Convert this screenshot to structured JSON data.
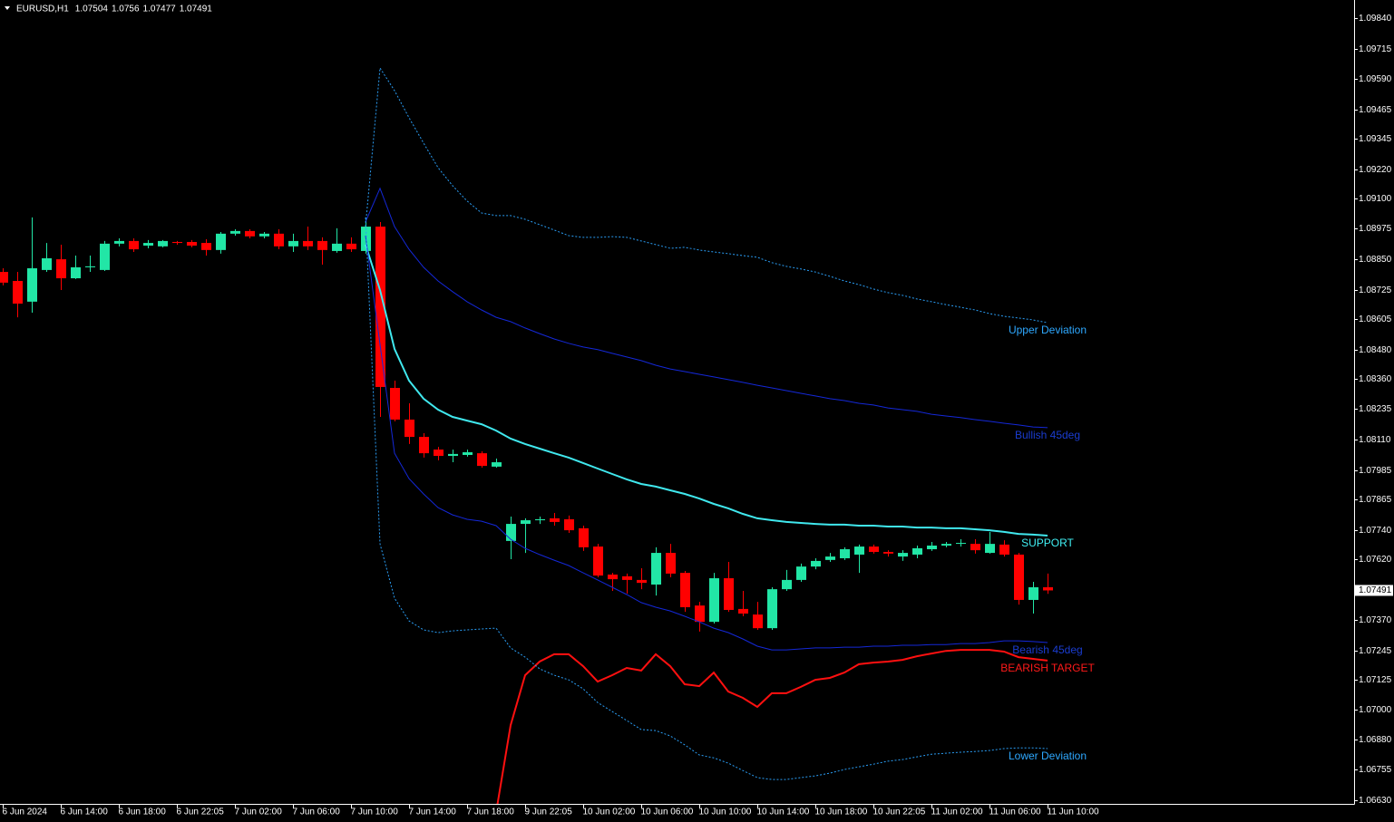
{
  "chart_data": {
    "type": "candlestick",
    "title": "EURUSD,H1",
    "up_color": "#22e6a6",
    "down_color": "#ff0000",
    "categories": [
      "6 Jun 2024",
      null,
      null,
      null,
      "6 Jun 14:00",
      null,
      null,
      null,
      "6 Jun 18:00",
      null,
      null,
      null,
      "6 Jun 22:05",
      null,
      null,
      null,
      "7 Jun 02:00",
      null,
      null,
      null,
      "7 Jun 06:00",
      null,
      null,
      null,
      "7 Jun 10:00",
      null,
      null,
      null,
      "7 Jun 14:00",
      null,
      null,
      null,
      "7 Jun 18:00",
      null,
      null,
      null,
      "9 Jun 22:05",
      null,
      null,
      null,
      "10 Jun 02:00",
      null,
      null,
      null,
      "10 Jun 06:00",
      null,
      null,
      null,
      "10 Jun 10:00",
      null,
      null,
      null,
      "10 Jun 14:00",
      null,
      null,
      null,
      "10 Jun 18:00",
      null,
      null,
      null,
      "10 Jun 22:05",
      null,
      null,
      null,
      "11 Jun 02:00",
      null,
      null,
      null,
      "11 Jun 06:00",
      null,
      null,
      null,
      "11 Jun 10:00"
    ],
    "open": [
      1.08798,
      1.08761,
      1.08676,
      1.08806,
      1.0885,
      1.08772,
      1.08817,
      1.08806,
      1.08914,
      1.08925,
      1.08906,
      1.08903,
      1.08921,
      1.08921,
      1.08917,
      1.08888,
      1.08955,
      1.08966,
      1.08944,
      1.08955,
      1.08903,
      1.08925,
      1.08925,
      1.08884,
      1.08914,
      1.08884,
      1.08984,
      1.08322,
      1.08192,
      1.08121,
      1.08069,
      1.08043,
      1.08047,
      1.08054,
      1.07999,
      1.07694,
      1.07764,
      1.07779,
      1.07787,
      1.07783,
      1.07746,
      1.07671,
      1.07556,
      1.07549,
      1.07534,
      1.07515,
      1.07645,
      1.07563,
      1.07429,
      1.07362,
      1.07541,
      1.07415,
      1.07392,
      1.07336,
      1.07496,
      1.07534,
      1.07589,
      1.07616,
      1.07623,
      1.07638,
      1.07671,
      1.07649,
      1.0763,
      1.07638,
      1.0766,
      1.07675,
      1.07686,
      1.07682,
      1.07645,
      1.07679,
      1.07638,
      1.07452,
      1.07504
    ],
    "high": [
      1.08813,
      1.08798,
      1.09022,
      1.08917,
      1.0891,
      1.08865,
      1.08865,
      1.08925,
      1.08936,
      1.08936,
      1.08929,
      1.08929,
      1.08925,
      1.08929,
      1.08932,
      1.08962,
      1.08973,
      1.08973,
      1.08962,
      1.08973,
      1.08955,
      1.08984,
      1.0894,
      1.08977,
      1.0894,
      1.09022,
      1.09003,
      1.08352,
      1.08259,
      1.08136,
      1.0808,
      1.08069,
      1.08069,
      1.08062,
      1.08032,
      1.07794,
      1.07787,
      1.07794,
      1.07809,
      1.07798,
      1.07757,
      1.07682,
      1.07563,
      1.0756,
      1.07582,
      1.07668,
      1.07682,
      1.07571,
      1.07444,
      1.07563,
      1.07608,
      1.07489,
      1.07444,
      1.07504,
      1.07575,
      1.07601,
      1.07623,
      1.07645,
      1.07668,
      1.07679,
      1.07679,
      1.07656,
      1.07656,
      1.07675,
      1.0769,
      1.0769,
      1.07701,
      1.07701,
      1.07731,
      1.07697,
      1.07645,
      1.07526,
      1.0756
    ],
    "low": [
      1.08743,
      1.08612,
      1.08631,
      1.08798,
      1.08724,
      1.08769,
      1.08798,
      1.08802,
      1.08903,
      1.0888,
      1.08895,
      1.08899,
      1.0891,
      1.08899,
      1.08865,
      1.08873,
      1.08947,
      1.08936,
      1.08936,
      1.08891,
      1.0888,
      1.08888,
      1.08828,
      1.08877,
      1.0888,
      1.08873,
      1.08203,
      1.08185,
      1.08092,
      1.08036,
      1.08025,
      1.08017,
      1.0804,
      1.07995,
      1.07995,
      1.07619,
      1.07645,
      1.07764,
      1.07757,
      1.07727,
      1.07653,
      1.07545,
      1.07489,
      1.07478,
      1.07496,
      1.0747,
      1.07545,
      1.07403,
      1.07322,
      1.07355,
      1.07403,
      1.07385,
      1.07329,
      1.07329,
      1.07489,
      1.07526,
      1.07578,
      1.07608,
      1.07616,
      1.07563,
      1.07642,
      1.0763,
      1.07612,
      1.07623,
      1.07653,
      1.07668,
      1.07671,
      1.07642,
      1.07642,
      1.0763,
      1.07433,
      1.07396,
      1.07477
    ],
    "close": [
      1.08754,
      1.08668,
      1.08813,
      1.08854,
      1.08772,
      1.08817,
      1.08821,
      1.08914,
      1.08925,
      1.08891,
      1.08917,
      1.08925,
      1.08917,
      1.08906,
      1.08888,
      1.08955,
      1.08966,
      1.08944,
      1.08955,
      1.08903,
      1.08925,
      1.08903,
      1.08888,
      1.08914,
      1.08891,
      1.08984,
      1.08326,
      1.08192,
      1.08121,
      1.08054,
      1.08043,
      1.08051,
      1.08058,
      1.08002,
      1.08017,
      1.07764,
      1.07779,
      1.07783,
      1.07772,
      1.07738,
      1.07668,
      1.07552,
      1.07537,
      1.07534,
      1.07522,
      1.07645,
      1.0756,
      1.07422,
      1.07362,
      1.07541,
      1.07411,
      1.07396,
      1.07336,
      1.07496,
      1.07534,
      1.07589,
      1.07612,
      1.0763,
      1.0766,
      1.07671,
      1.07649,
      1.07642,
      1.07645,
      1.07664,
      1.07675,
      1.07682,
      1.07686,
      1.07656,
      1.07682,
      1.07638,
      1.07452,
      1.07504,
      1.07491
    ],
    "series": [
      {
        "name": "Upper Deviation",
        "color": "#2a9df4",
        "label_color": "#2ea8ff",
        "dashed": true,
        "width": 1,
        "values": [
          null,
          null,
          null,
          null,
          null,
          null,
          null,
          null,
          null,
          null,
          null,
          null,
          null,
          null,
          null,
          null,
          null,
          null,
          null,
          null,
          null,
          null,
          null,
          null,
          null,
          1.08984,
          1.09635,
          1.09542,
          1.09431,
          1.09327,
          1.09226,
          1.09152,
          1.09089,
          1.0904,
          1.09029,
          1.09029,
          1.09014,
          1.08992,
          1.0897,
          1.08947,
          1.0894,
          1.0894,
          1.08943,
          1.0894,
          1.08925,
          1.0891,
          1.08895,
          1.08899,
          1.08888,
          1.0888,
          1.08873,
          1.08865,
          1.08858,
          1.08836,
          1.08821,
          1.0881,
          1.08798,
          1.0878,
          1.08761,
          1.08746,
          1.08728,
          1.08713,
          1.08702,
          1.08687,
          1.08676,
          1.08664,
          1.08653,
          1.08642,
          1.08627,
          1.08616,
          1.08609,
          1.08601,
          1.0859
        ]
      },
      {
        "name": "Bullish 45deg",
        "color": "#1428d8",
        "label_color": "#1a3cd0",
        "dashed": false,
        "width": 1,
        "values": [
          null,
          null,
          null,
          null,
          null,
          null,
          null,
          null,
          null,
          null,
          null,
          null,
          null,
          null,
          null,
          null,
          null,
          null,
          null,
          null,
          null,
          null,
          null,
          null,
          null,
          1.09003,
          1.09141,
          1.08984,
          1.08891,
          1.08817,
          1.08761,
          1.08717,
          1.08676,
          1.08642,
          1.08612,
          1.08594,
          1.08568,
          1.08545,
          1.08523,
          1.08505,
          1.0849,
          1.08479,
          1.08464,
          1.08449,
          1.08434,
          1.08415,
          1.084,
          1.08389,
          1.08378,
          1.08367,
          1.08356,
          1.08345,
          1.08333,
          1.08322,
          1.08311,
          1.083,
          1.08289,
          1.08278,
          1.0827,
          1.08259,
          1.08252,
          1.0824,
          1.08233,
          1.08226,
          1.08214,
          1.08207,
          1.082,
          1.08192,
          1.08185,
          1.08177,
          1.0817,
          1.08162,
          1.08159
        ]
      },
      {
        "name": "SUPPORT",
        "color": "#40e8ee",
        "label_color": "#40f0f4",
        "dashed": false,
        "width": 2,
        "values": [
          null,
          null,
          null,
          null,
          null,
          null,
          null,
          null,
          null,
          null,
          null,
          null,
          null,
          null,
          null,
          null,
          null,
          null,
          null,
          null,
          null,
          null,
          null,
          null,
          null,
          1.0891,
          1.08724,
          1.08482,
          1.08352,
          1.08278,
          1.08233,
          1.08203,
          1.08188,
          1.08173,
          1.08147,
          1.08114,
          1.08092,
          1.08073,
          1.08054,
          1.08036,
          1.08014,
          1.07991,
          1.07969,
          1.07947,
          1.07928,
          1.07917,
          1.07902,
          1.07887,
          1.07868,
          1.07846,
          1.07828,
          1.07805,
          1.07787,
          1.07779,
          1.07772,
          1.07768,
          1.07764,
          1.07761,
          1.07761,
          1.07757,
          1.07757,
          1.07753,
          1.07753,
          1.07749,
          1.07749,
          1.07746,
          1.07746,
          1.07742,
          1.07738,
          1.07731,
          1.07723,
          1.0772,
          1.07716
        ]
      },
      {
        "name": "Bearish 45deg",
        "color": "#1428d8",
        "label_color": "#1a3cd0",
        "dashed": false,
        "width": 1,
        "values": [
          null,
          null,
          null,
          null,
          null,
          null,
          null,
          null,
          null,
          null,
          null,
          null,
          null,
          null,
          null,
          null,
          null,
          null,
          null,
          null,
          null,
          null,
          null,
          null,
          null,
          1.08947,
          1.08501,
          1.08054,
          1.0795,
          1.07887,
          1.07831,
          1.07801,
          1.07783,
          1.07775,
          1.07757,
          1.07701,
          1.07664,
          1.07638,
          1.07615,
          1.07593,
          1.07563,
          1.07534,
          1.07504,
          1.07474,
          1.07441,
          1.07422,
          1.07407,
          1.07385,
          1.07362,
          1.07336,
          1.07318,
          1.07292,
          1.07262,
          1.07247,
          1.07247,
          1.07251,
          1.07255,
          1.07255,
          1.07258,
          1.07258,
          1.07262,
          1.07262,
          1.07266,
          1.07266,
          1.07269,
          1.07269,
          1.07273,
          1.07273,
          1.07277,
          1.07284,
          1.07284,
          1.07281,
          1.07277
        ]
      },
      {
        "name": "BEARISH TARGET",
        "color": "#ff1010",
        "label_color": "#ff1a1a",
        "dashed": false,
        "width": 2,
        "values": [
          null,
          null,
          null,
          null,
          null,
          null,
          null,
          null,
          null,
          null,
          null,
          null,
          null,
          null,
          null,
          null,
          null,
          null,
          null,
          null,
          null,
          null,
          null,
          null,
          null,
          null,
          null,
          null,
          null,
          null,
          null,
          null,
          null,
          null,
          1.0658,
          1.06938,
          1.07143,
          1.07199,
          1.07229,
          1.07229,
          1.0718,
          1.07117,
          1.07143,
          1.07173,
          1.07162,
          1.07229,
          1.0718,
          1.07106,
          1.07098,
          1.07154,
          1.07076,
          1.0705,
          1.07013,
          1.07069,
          1.07069,
          1.07095,
          1.07124,
          1.07132,
          1.07154,
          1.07188,
          1.07195,
          1.07199,
          1.07206,
          1.07221,
          1.07232,
          1.07243,
          1.07247,
          1.07247,
          1.07247,
          1.0724,
          1.07217,
          1.0721,
          1.07203
        ]
      },
      {
        "name": "Lower Deviation",
        "color": "#2a9df4",
        "label_color": "#2ea8ff",
        "dashed": true,
        "width": 1,
        "values": [
          null,
          null,
          null,
          null,
          null,
          null,
          null,
          null,
          null,
          null,
          null,
          null,
          null,
          null,
          null,
          null,
          null,
          null,
          null,
          null,
          null,
          null,
          null,
          null,
          null,
          1.09022,
          1.07682,
          1.07459,
          1.07366,
          1.07329,
          1.07318,
          1.07325,
          1.07329,
          1.07333,
          1.07336,
          1.07255,
          1.07217,
          1.07169,
          1.07143,
          1.07124,
          1.07087,
          1.07031,
          1.06994,
          1.06957,
          1.0692,
          1.06916,
          1.06894,
          1.06857,
          1.06816,
          1.06804,
          1.06782,
          1.06752,
          1.06723,
          1.06715,
          1.06715,
          1.06723,
          1.0673,
          1.06741,
          1.06756,
          1.06767,
          1.06778,
          1.0679,
          1.06797,
          1.06808,
          1.06819,
          1.06823,
          1.06827,
          1.0683,
          1.06834,
          1.06842,
          1.06845,
          1.06845,
          1.06842
        ]
      }
    ],
    "ylim": [
      1.06615,
      1.09914
    ],
    "yticks": [
      {
        "value": 1.0984,
        "label": "1.09840"
      },
      {
        "value": 1.09715,
        "label": "1.09715"
      },
      {
        "value": 1.0959,
        "label": "1.09590"
      },
      {
        "value": 1.09465,
        "label": "1.09465"
      },
      {
        "value": 1.09345,
        "label": "1.09345"
      },
      {
        "value": 1.0922,
        "label": "1.09220"
      },
      {
        "value": 1.091,
        "label": "1.09100"
      },
      {
        "value": 1.08975,
        "label": "1.08975"
      },
      {
        "value": 1.0885,
        "label": "1.08850"
      },
      {
        "value": 1.08725,
        "label": "1.08725"
      },
      {
        "value": 1.08605,
        "label": "1.08605"
      },
      {
        "value": 1.0848,
        "label": "1.08480"
      },
      {
        "value": 1.0836,
        "label": "1.08360"
      },
      {
        "value": 1.08235,
        "label": "1.08235"
      },
      {
        "value": 1.0811,
        "label": "1.08110"
      },
      {
        "value": 1.07985,
        "label": "1.07985"
      },
      {
        "value": 1.07865,
        "label": "1.07865"
      },
      {
        "value": 1.0774,
        "label": "1.07740"
      },
      {
        "value": 1.0762,
        "label": "1.07620"
      },
      {
        "value": 1.0737,
        "label": "1.07370"
      },
      {
        "value": 1.07245,
        "label": "1.07245"
      },
      {
        "value": 1.07125,
        "label": "1.07125"
      },
      {
        "value": 1.07,
        "label": "1.07000"
      },
      {
        "value": 1.0688,
        "label": "1.06880"
      },
      {
        "value": 1.06755,
        "label": "1.06755"
      },
      {
        "value": 1.0663,
        "label": "1.06630"
      }
    ],
    "grid": false
  }
}
